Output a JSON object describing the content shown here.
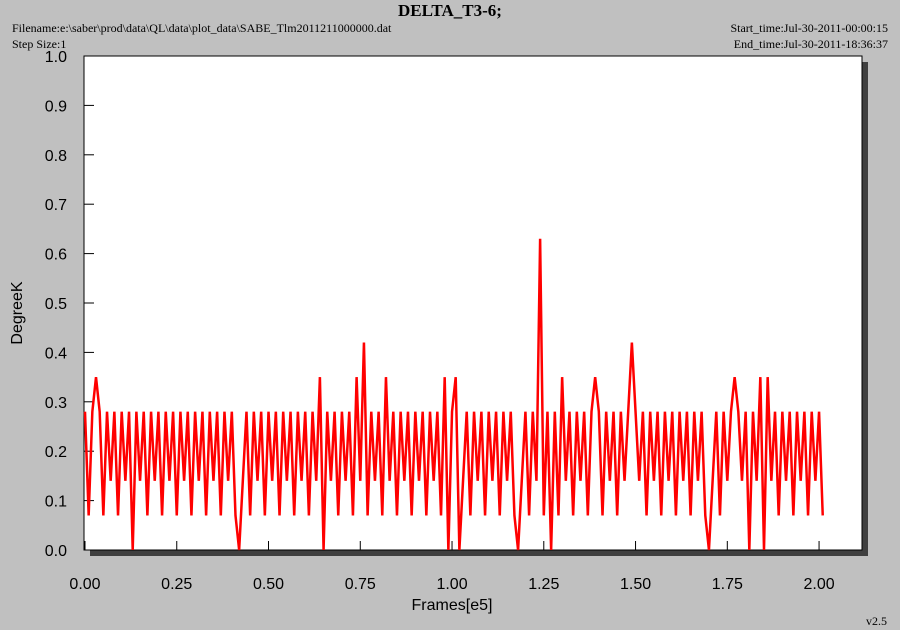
{
  "header": {
    "filename": "Filename:e:\\saber\\prod\\data\\QL\\data\\plot_data\\SABE_Tlm2011211000000.dat",
    "step_size": "Step Size:1",
    "start_time": "Start_time:Jul-30-2011-00:00:15",
    "end_time": "End_time:Jul-30-2011-18:36:37",
    "version": "v2.5"
  },
  "chart_data": {
    "type": "line",
    "title": "DELTA_T3-6;",
    "x_label": "Frames[e5]",
    "y_label": "DegreeK",
    "color": "#ff0000",
    "xlim": [
      0,
      2.117
    ],
    "ylim": [
      0,
      1
    ],
    "xticks": [
      {
        "value": 0,
        "label": "0.00"
      },
      {
        "value": 0.25,
        "label": "0.25"
      },
      {
        "value": 0.5,
        "label": "0.50"
      },
      {
        "value": 0.75,
        "label": "0.75"
      },
      {
        "value": 1,
        "label": "1.00"
      },
      {
        "value": 1.25,
        "label": "1.25"
      },
      {
        "value": 1.5,
        "label": "1.50"
      },
      {
        "value": 1.75,
        "label": "1.75"
      },
      {
        "value": 2,
        "label": "2.00"
      }
    ],
    "yticks": [
      {
        "value": 0,
        "label": "0.0"
      },
      0.1,
      0.2,
      0.3,
      0.4,
      0.5,
      0.6,
      0.7,
      0.8,
      0.9,
      {
        "value": 1,
        "label": "1.0"
      }
    ],
    "x": [
      0,
      0.01,
      0.02,
      0.03,
      0.04,
      0.05,
      0.06,
      0.07,
      0.08,
      0.09,
      0.1,
      0.11,
      0.12,
      0.13,
      0.14,
      0.15,
      0.16,
      0.17,
      0.18,
      0.19,
      0.2,
      0.21,
      0.22,
      0.23,
      0.24,
      0.25,
      0.26,
      0.27,
      0.28,
      0.29,
      0.3,
      0.31,
      0.32,
      0.33,
      0.34,
      0.35,
      0.36,
      0.37,
      0.38,
      0.39,
      0.4,
      0.41,
      0.42,
      0.43,
      0.44,
      0.45,
      0.46,
      0.47,
      0.48,
      0.49,
      0.5,
      0.51,
      0.52,
      0.53,
      0.54,
      0.55,
      0.56,
      0.57,
      0.58,
      0.59,
      0.6,
      0.61,
      0.62,
      0.63,
      0.64,
      0.65,
      0.66,
      0.67,
      0.68,
      0.69,
      0.7,
      0.71,
      0.72,
      0.73,
      0.74,
      0.75,
      0.76,
      0.77,
      0.78,
      0.79,
      0.8,
      0.81,
      0.82,
      0.83,
      0.84,
      0.85,
      0.86,
      0.87,
      0.88,
      0.89,
      0.9,
      0.91,
      0.92,
      0.93,
      0.94,
      0.95,
      0.96,
      0.97,
      0.98,
      0.99,
      1,
      1.01,
      1.02,
      1.03,
      1.04,
      1.05,
      1.06,
      1.07,
      1.08,
      1.09,
      1.1,
      1.11,
      1.12,
      1.13,
      1.14,
      1.15,
      1.16,
      1.17,
      1.18,
      1.19,
      1.2,
      1.21,
      1.22,
      1.23,
      1.24,
      1.25,
      1.26,
      1.27,
      1.28,
      1.29,
      1.3,
      1.31,
      1.32,
      1.33,
      1.34,
      1.35,
      1.36,
      1.37,
      1.38,
      1.39,
      1.4,
      1.41,
      1.42,
      1.43,
      1.44,
      1.45,
      1.46,
      1.47,
      1.48,
      1.49,
      1.5,
      1.51,
      1.52,
      1.53,
      1.54,
      1.55,
      1.56,
      1.57,
      1.58,
      1.59,
      1.6,
      1.61,
      1.62,
      1.63,
      1.64,
      1.65,
      1.66,
      1.67,
      1.68,
      1.69,
      1.7,
      1.71,
      1.72,
      1.73,
      1.74,
      1.75,
      1.76,
      1.77,
      1.78,
      1.79,
      1.8,
      1.81,
      1.82,
      1.83,
      1.84,
      1.85,
      1.86,
      1.87,
      1.88,
      1.89,
      1.9,
      1.91,
      1.92,
      1.93,
      1.94,
      1.95,
      1.96,
      1.97,
      1.98,
      1.99,
      2,
      2.01
    ],
    "values": [
      0.28,
      0.07,
      0.28,
      0.35,
      0.28,
      0.07,
      0.28,
      0.14,
      0.28,
      0.07,
      0.28,
      0.14,
      0.28,
      0,
      0.28,
      0.14,
      0.28,
      0.07,
      0.28,
      0.14,
      0.28,
      0.07,
      0.28,
      0.14,
      0.28,
      0.07,
      0.28,
      0.14,
      0.28,
      0.07,
      0.28,
      0.14,
      0.28,
      0.07,
      0.28,
      0.14,
      0.28,
      0.07,
      0.28,
      0.14,
      0.28,
      0.07,
      0,
      0.14,
      0.28,
      0.07,
      0.28,
      0.14,
      0.28,
      0.07,
      0.28,
      0.14,
      0.28,
      0.07,
      0.28,
      0.14,
      0.28,
      0.07,
      0.28,
      0.14,
      0.28,
      0.07,
      0.28,
      0.14,
      0.35,
      0,
      0.28,
      0.14,
      0.28,
      0.07,
      0.28,
      0.14,
      0.28,
      0.07,
      0.35,
      0.14,
      0.42,
      0.07,
      0.28,
      0.14,
      0.28,
      0.07,
      0.35,
      0.14,
      0.28,
      0.07,
      0.28,
      0.14,
      0.28,
      0.07,
      0.28,
      0.14,
      0.28,
      0.07,
      0.28,
      0.14,
      0.28,
      0.07,
      0.35,
      0,
      0.28,
      0.35,
      0,
      0.14,
      0.28,
      0.07,
      0.28,
      0.14,
      0.28,
      0.07,
      0.28,
      0.14,
      0.28,
      0.07,
      0.28,
      0.14,
      0.28,
      0.07,
      0,
      0.14,
      0.28,
      0.07,
      0.28,
      0.14,
      0.63,
      0.07,
      0.28,
      0,
      0.28,
      0.07,
      0.35,
      0.14,
      0.28,
      0.07,
      0.28,
      0.14,
      0.28,
      0.07,
      0.28,
      0.35,
      0.28,
      0.07,
      0.28,
      0.14,
      0.28,
      0.07,
      0.28,
      0.14,
      0.28,
      0.42,
      0.28,
      0.14,
      0.28,
      0.07,
      0.28,
      0.14,
      0.28,
      0.07,
      0.28,
      0.14,
      0.28,
      0.07,
      0.28,
      0.14,
      0.28,
      0.07,
      0.28,
      0.14,
      0.28,
      0.07,
      0,
      0.14,
      0.28,
      0.07,
      0.28,
      0.14,
      0.28,
      0.35,
      0.28,
      0.14,
      0.28,
      0,
      0.28,
      0.14,
      0.35,
      0,
      0.35,
      0.14,
      0.28,
      0.07,
      0.28,
      0.14,
      0.28,
      0.07,
      0.28,
      0.14,
      0.28,
      0.07,
      0.28,
      0.14,
      0.28,
      0.07
    ]
  }
}
